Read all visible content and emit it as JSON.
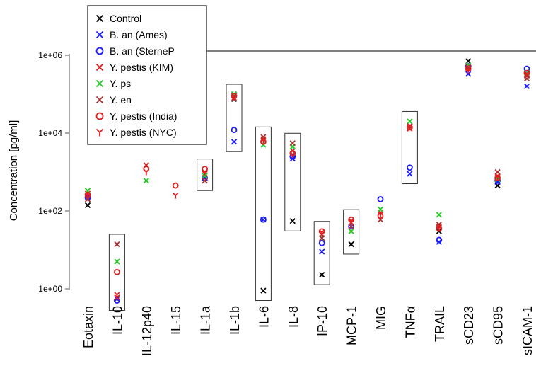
{
  "chart_data": {
    "type": "scatter",
    "title": "",
    "xlabel": "",
    "ylabel": "Concentration [pg/ml]",
    "yscale": "log10",
    "ylim": [
      0.5,
      1000000
    ],
    "yticks": [
      {
        "value": 1,
        "label": "1e+00"
      },
      {
        "value": 100,
        "label": "1e+02"
      },
      {
        "value": 10000,
        "label": "1e+04"
      },
      {
        "value": 1000000,
        "label": "1e+06"
      }
    ],
    "categories": [
      "Eotaxin",
      "IL-10",
      "IL-12p40",
      "IL-15",
      "IL-1a",
      "IL-1b",
      "IL-6",
      "IL-8",
      "IP-10",
      "MCP-1",
      "MIG",
      "TNFα",
      "TRAIL",
      "sCD23",
      "sCD95",
      "sICAM-1"
    ],
    "legend_position": "top-left",
    "series": [
      {
        "name": "Control",
        "color": "#000000",
        "marker": "x",
        "values": [
          140,
          0.55,
          null,
          null,
          700,
          75000,
          0.9,
          55,
          2.3,
          14,
          90,
          15000,
          30,
          700000,
          450,
          300000
        ]
      },
      {
        "name": "B. an (Ames)",
        "color": "#1a1aff",
        "marker": "x",
        "values": [
          230,
          0.55,
          null,
          null,
          700,
          6000,
          60,
          2200,
          9,
          40,
          90,
          900,
          16,
          330000,
          550,
          160000
        ]
      },
      {
        "name": "B. an (SterneP",
        "color": "#1a1aff",
        "marker": "o",
        "values": [
          220,
          0.5,
          null,
          null,
          700,
          12000,
          60,
          2500,
          15,
          40,
          200,
          1300,
          18,
          520000,
          600,
          450000
        ]
      },
      {
        "name": "Y. pestis (KIM)",
        "color": "#e02020",
        "marker": "x",
        "values": [
          280,
          0.6,
          1500,
          null,
          900,
          80000,
          7000,
          3500,
          25,
          50,
          90,
          13000,
          40,
          450000,
          800,
          300000
        ]
      },
      {
        "name": "Y. ps",
        "color": "#22cc22",
        "marker": "x",
        "values": [
          330,
          5,
          600,
          null,
          800,
          100000,
          5000,
          4500,
          20,
          30,
          110,
          20000,
          80,
          550000,
          650,
          350000
        ]
      },
      {
        "name": "Y. en",
        "color": "#a83232",
        "marker": "x",
        "values": [
          200,
          14,
          null,
          null,
          600,
          90000,
          8000,
          5500,
          20,
          40,
          60,
          15000,
          45,
          500000,
          1000,
          250000
        ]
      },
      {
        "name": "Y. pestis (India)",
        "color": "#e02020",
        "marker": "o",
        "values": [
          260,
          2.7,
          1200,
          450,
          1200,
          90000,
          6000,
          3000,
          30,
          60,
          75,
          14000,
          35,
          450000,
          700,
          350000
        ]
      },
      {
        "name": "Y. pestis (NYC)",
        "color": "#e02020",
        "marker": "Y",
        "values": [
          250,
          0.7,
          1000,
          250,
          1000,
          85000,
          6500,
          2800,
          28,
          55,
          80,
          14500,
          38,
          400000,
          750,
          330000
        ]
      }
    ],
    "boxed_categories": [
      "IL-10",
      "IL-1a",
      "IL-1b",
      "IL-6",
      "IL-8",
      "IP-10",
      "MCP-1",
      "TNFα"
    ]
  }
}
